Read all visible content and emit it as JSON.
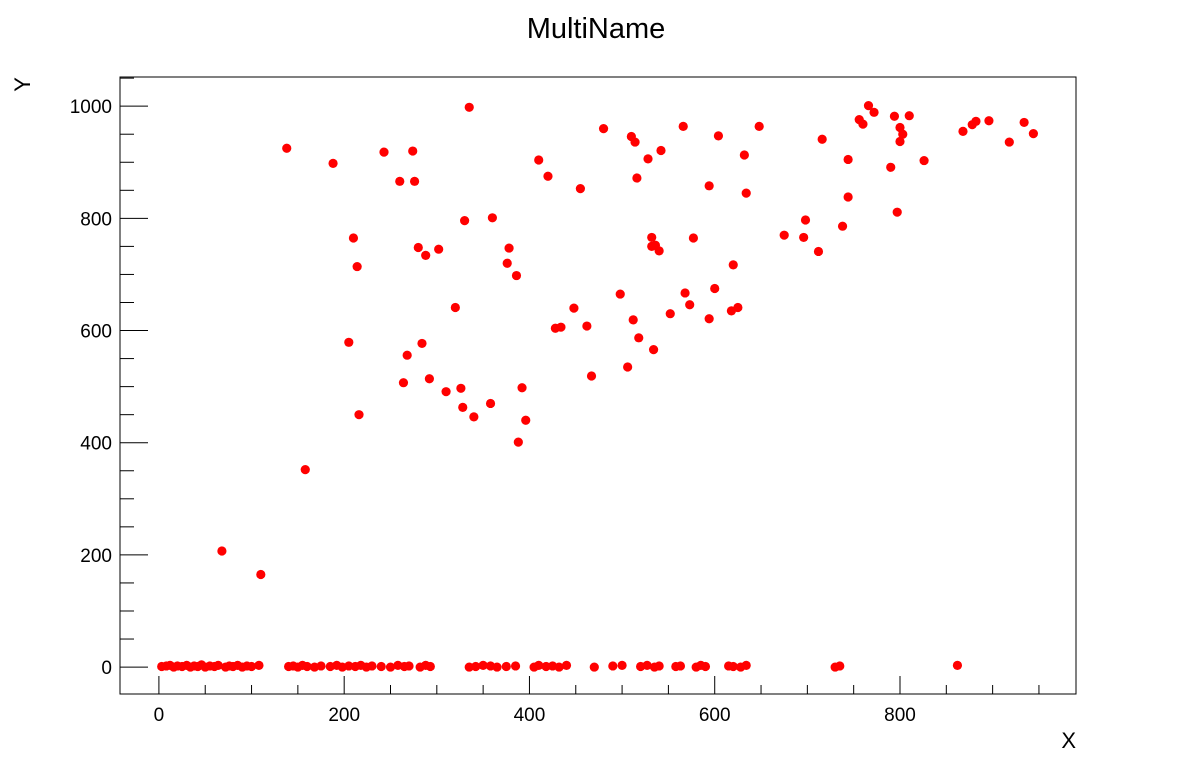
{
  "chart_data": {
    "type": "scatter",
    "title": "MultiName",
    "xlabel": "X",
    "ylabel": "Y",
    "xlim": [
      -42,
      990
    ],
    "ylim": [
      -48,
      1052
    ],
    "x_ticks": [
      0,
      200,
      400,
      600,
      800
    ],
    "y_ticks": [
      0,
      200,
      400,
      600,
      800,
      1000
    ],
    "marker_color": "#ff0000",
    "grid": false,
    "legend": "none",
    "series": [
      {
        "points": [
          [
            3,
            1
          ],
          [
            8,
            2
          ],
          [
            12,
            3
          ],
          [
            16,
            0
          ],
          [
            20,
            2
          ],
          [
            25,
            1
          ],
          [
            30,
            3
          ],
          [
            34,
            0
          ],
          [
            38,
            2
          ],
          [
            42,
            1
          ],
          [
            46,
            4
          ],
          [
            50,
            0
          ],
          [
            55,
            2
          ],
          [
            60,
            1
          ],
          [
            64,
            3
          ],
          [
            72,
            0
          ],
          [
            76,
            2
          ],
          [
            80,
            1
          ],
          [
            85,
            3
          ],
          [
            90,
            0
          ],
          [
            95,
            2
          ],
          [
            100,
            1
          ],
          [
            108,
            3
          ],
          [
            68,
            207
          ],
          [
            110,
            165
          ],
          [
            140,
            1
          ],
          [
            145,
            2
          ],
          [
            150,
            0
          ],
          [
            155,
            3
          ],
          [
            160,
            1
          ],
          [
            168,
            0
          ],
          [
            175,
            2
          ],
          [
            185,
            1
          ],
          [
            192,
            3
          ],
          [
            198,
            0
          ],
          [
            205,
            2
          ],
          [
            212,
            1
          ],
          [
            218,
            3
          ],
          [
            224,
            0
          ],
          [
            230,
            2
          ],
          [
            240,
            1
          ],
          [
            250,
            0
          ],
          [
            258,
            3
          ],
          [
            265,
            1
          ],
          [
            270,
            2
          ],
          [
            282,
            0
          ],
          [
            288,
            3
          ],
          [
            293,
            1
          ],
          [
            335,
            0
          ],
          [
            342,
            1
          ],
          [
            350,
            3
          ],
          [
            358,
            2
          ],
          [
            365,
            0
          ],
          [
            375,
            1
          ],
          [
            385,
            2
          ],
          [
            405,
            0
          ],
          [
            410,
            3
          ],
          [
            418,
            1
          ],
          [
            425,
            2
          ],
          [
            432,
            0
          ],
          [
            440,
            3
          ],
          [
            470,
            0
          ],
          [
            490,
            2
          ],
          [
            500,
            3
          ],
          [
            520,
            1
          ],
          [
            527,
            3
          ],
          [
            535,
            0
          ],
          [
            540,
            2
          ],
          [
            558,
            1
          ],
          [
            563,
            2
          ],
          [
            580,
            0
          ],
          [
            585,
            3
          ],
          [
            590,
            1
          ],
          [
            615,
            2
          ],
          [
            620,
            1
          ],
          [
            628,
            0
          ],
          [
            634,
            3
          ],
          [
            730,
            0
          ],
          [
            735,
            2
          ],
          [
            862,
            3
          ],
          [
            138,
            925
          ],
          [
            158,
            352
          ],
          [
            188,
            898
          ],
          [
            205,
            579
          ],
          [
            210,
            765
          ],
          [
            214,
            714
          ],
          [
            216,
            450
          ],
          [
            243,
            918
          ],
          [
            260,
            866
          ],
          [
            264,
            507
          ],
          [
            268,
            556
          ],
          [
            274,
            920
          ],
          [
            276,
            866
          ],
          [
            280,
            748
          ],
          [
            284,
            577
          ],
          [
            288,
            734
          ],
          [
            292,
            514
          ],
          [
            302,
            745
          ],
          [
            310,
            491
          ],
          [
            320,
            641
          ],
          [
            326,
            497
          ],
          [
            328,
            463
          ],
          [
            330,
            796
          ],
          [
            335,
            998
          ],
          [
            340,
            446
          ],
          [
            358,
            470
          ],
          [
            360,
            801
          ],
          [
            376,
            720
          ],
          [
            378,
            747
          ],
          [
            386,
            698
          ],
          [
            388,
            401
          ],
          [
            392,
            498
          ],
          [
            396,
            440
          ],
          [
            410,
            904
          ],
          [
            420,
            875
          ],
          [
            428,
            604
          ],
          [
            434,
            606
          ],
          [
            448,
            640
          ],
          [
            455,
            853
          ],
          [
            462,
            608
          ],
          [
            467,
            519
          ],
          [
            480,
            960
          ],
          [
            498,
            665
          ],
          [
            506,
            535
          ],
          [
            510,
            946
          ],
          [
            512,
            619
          ],
          [
            514,
            936
          ],
          [
            516,
            872
          ],
          [
            518,
            587
          ],
          [
            528,
            906
          ],
          [
            532,
            766
          ],
          [
            532,
            750
          ],
          [
            534,
            566
          ],
          [
            536,
            752
          ],
          [
            540,
            742
          ],
          [
            542,
            921
          ],
          [
            552,
            630
          ],
          [
            566,
            964
          ],
          [
            568,
            667
          ],
          [
            573,
            646
          ],
          [
            577,
            765
          ],
          [
            594,
            858
          ],
          [
            594,
            621
          ],
          [
            600,
            675
          ],
          [
            604,
            947
          ],
          [
            618,
            635
          ],
          [
            620,
            717
          ],
          [
            625,
            641
          ],
          [
            632,
            913
          ],
          [
            634,
            845
          ],
          [
            648,
            964
          ],
          [
            675,
            770
          ],
          [
            696,
            766
          ],
          [
            698,
            797
          ],
          [
            712,
            741
          ],
          [
            716,
            941
          ],
          [
            738,
            786
          ],
          [
            744,
            905
          ],
          [
            744,
            838
          ],
          [
            756,
            976
          ],
          [
            760,
            968
          ],
          [
            766,
            1001
          ],
          [
            772,
            989
          ],
          [
            790,
            891
          ],
          [
            794,
            982
          ],
          [
            797,
            811
          ],
          [
            800,
            937
          ],
          [
            800,
            962
          ],
          [
            803,
            950
          ],
          [
            810,
            983
          ],
          [
            826,
            903
          ],
          [
            868,
            955
          ],
          [
            878,
            967
          ],
          [
            882,
            973
          ],
          [
            896,
            974
          ],
          [
            918,
            936
          ],
          [
            934,
            971
          ],
          [
            944,
            951
          ]
        ]
      }
    ]
  }
}
